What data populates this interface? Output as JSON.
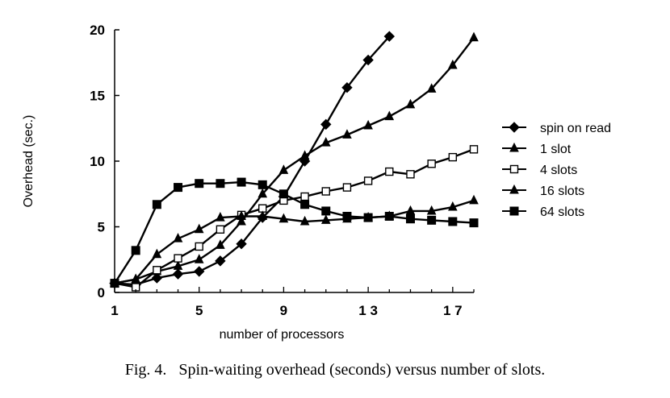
{
  "caption": "Fig. 4.   Spin-waiting overhead (seconds) versus number of slots.",
  "chart_data": {
    "type": "line",
    "title": "",
    "xlabel": "number of processors",
    "ylabel": "Overhead (sec.)",
    "xlim": [
      1,
      18
    ],
    "ylim": [
      0,
      20
    ],
    "xticks": [
      1,
      5,
      9,
      13,
      17
    ],
    "xtick_labels": [
      "1",
      "5",
      "9",
      "1 3",
      "1 7"
    ],
    "yticks": [
      0,
      5,
      10,
      15,
      20
    ],
    "ytick_labels": [
      "0",
      "5",
      "10",
      "15",
      "20"
    ],
    "legend_position": "right",
    "series": [
      {
        "name": "spin on read",
        "marker": "diamond-filled",
        "x": [
          1,
          2,
          3,
          4,
          5,
          6,
          7,
          8,
          9,
          10,
          11,
          12,
          13,
          14
        ],
        "y": [
          0.7,
          0.6,
          1.1,
          1.4,
          1.6,
          2.4,
          3.7,
          5.7,
          7.3,
          10.0,
          12.8,
          15.6,
          17.7,
          19.5
        ]
      },
      {
        "name": "1 slot",
        "marker": "triangle-filled",
        "x": [
          1,
          2,
          3,
          4,
          5,
          6,
          7,
          8,
          9,
          10,
          11,
          12,
          13,
          14,
          15,
          16,
          17,
          18
        ],
        "y": [
          0.7,
          1.0,
          1.6,
          2.0,
          2.5,
          3.6,
          5.4,
          7.5,
          9.3,
          10.4,
          11.4,
          12.0,
          12.7,
          13.4,
          14.3,
          15.5,
          17.3,
          19.4
        ]
      },
      {
        "name": "4 slots",
        "marker": "square-open",
        "x": [
          1,
          2,
          3,
          4,
          5,
          6,
          7,
          8,
          9,
          10,
          11,
          12,
          13,
          14,
          15,
          16,
          17,
          18
        ],
        "y": [
          0.7,
          0.4,
          1.7,
          2.6,
          3.5,
          4.8,
          5.9,
          6.4,
          7.0,
          7.3,
          7.7,
          8.0,
          8.5,
          9.2,
          9.0,
          9.8,
          10.3,
          10.9
        ]
      },
      {
        "name": "16 slots",
        "marker": "triangle-filled",
        "x": [
          1,
          2,
          3,
          4,
          5,
          6,
          7,
          8,
          9,
          10,
          11,
          12,
          13,
          14,
          15,
          16,
          17,
          18
        ],
        "y": [
          0.7,
          1.0,
          2.9,
          4.1,
          4.8,
          5.7,
          5.8,
          5.8,
          5.6,
          5.4,
          5.5,
          5.6,
          5.7,
          5.8,
          6.2,
          6.2,
          6.5,
          7.0
        ]
      },
      {
        "name": "64 slots",
        "marker": "square-filled",
        "x": [
          1,
          2,
          3,
          4,
          5,
          6,
          7,
          8,
          9,
          10,
          11,
          12,
          13,
          14,
          15,
          16,
          17,
          18
        ],
        "y": [
          0.7,
          3.2,
          6.7,
          8.0,
          8.3,
          8.3,
          8.4,
          8.2,
          7.5,
          6.7,
          6.2,
          5.8,
          5.7,
          5.8,
          5.6,
          5.5,
          5.4,
          5.3
        ]
      }
    ]
  }
}
